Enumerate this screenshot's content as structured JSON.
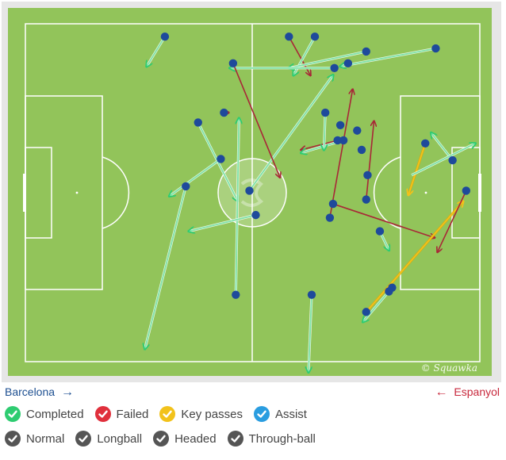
{
  "teams": {
    "home": {
      "name": "Barcelona",
      "arrow": "→",
      "color": "#1d4f91"
    },
    "away": {
      "name": "Espanyol",
      "arrow": "←",
      "color": "#c8283c"
    }
  },
  "watermark": "© Squawka",
  "colors": {
    "pitch": "#92c45a",
    "lines": "#ffffff",
    "completed": "#2ecc71",
    "failed": "#e0303c",
    "key": "#f2c21b",
    "assist": "#2a9de0",
    "type": "#555555",
    "player_dot": "#1e4a9b"
  },
  "legend": {
    "outcomes": [
      {
        "label": "Completed",
        "color": "#2ecc71",
        "icon": "check-icon"
      },
      {
        "label": "Failed",
        "color": "#e0303c",
        "icon": "check-icon"
      },
      {
        "label": "Key passes",
        "color": "#f2c21b",
        "icon": "check-icon"
      },
      {
        "label": "Assist",
        "color": "#2a9de0",
        "icon": "check-icon"
      }
    ],
    "types": [
      {
        "label": "Normal",
        "icon": "check-icon"
      },
      {
        "label": "Longball",
        "icon": "check-icon"
      },
      {
        "label": "Headed",
        "icon": "check-icon"
      },
      {
        "label": "Through-ball",
        "icon": "check-icon"
      }
    ]
  },
  "chart_data": {
    "type": "scatter",
    "x_range": [
      0,
      100
    ],
    "y_range": [
      0,
      100
    ],
    "direction": "left-to-right",
    "passes": [
      {
        "from": [
          58.0,
          3.8
        ],
        "to": [
          62.7,
          15.2
        ],
        "outcome": "failed"
      },
      {
        "from": [
          49.3,
          49.4
        ],
        "to": [
          67.7,
          15.2
        ],
        "outcome": "completed"
      },
      {
        "from": [
          63.7,
          3.8
        ],
        "to": [
          59.0,
          15.2
        ],
        "outcome": "completed"
      },
      {
        "from": [
          90.3,
          7.3
        ],
        "to": [
          69.3,
          12.6
        ],
        "outcome": "completed"
      },
      {
        "from": [
          75.0,
          8.2
        ],
        "to": [
          58.0,
          13.1
        ],
        "outcome": "completed"
      },
      {
        "from": [
          68.0,
          13.1
        ],
        "to": [
          45.0,
          13.1
        ],
        "outcome": "completed"
      },
      {
        "from": [
          45.7,
          11.7
        ],
        "to": [
          56.0,
          45.4
        ],
        "outcome": "failed"
      },
      {
        "from": [
          30.7,
          3.8
        ],
        "to": [
          26.7,
          12.6
        ],
        "outcome": "completed"
      },
      {
        "from": [
          43.7,
          26.3
        ],
        "to": [
          44.7,
          26.3
        ],
        "outcome": "failed"
      },
      {
        "from": [
          38.0,
          29.2
        ],
        "to": [
          46.7,
          52.4
        ],
        "outcome": "completed"
      },
      {
        "from": [
          46.3,
          80.2
        ],
        "to": [
          47.0,
          28.0
        ],
        "outcome": "completed"
      },
      {
        "from": [
          50.7,
          56.6
        ],
        "to": [
          36.0,
          61.4
        ],
        "outcome": "completed"
      },
      {
        "from": [
          35.3,
          48.1
        ],
        "to": [
          26.3,
          96.2
        ],
        "outcome": "completed"
      },
      {
        "from": [
          43.0,
          40.0
        ],
        "to": [
          31.7,
          51.0
        ],
        "outcome": "completed"
      },
      {
        "from": [
          67.7,
          53.3
        ],
        "to": [
          90.0,
          63.3
        ],
        "outcome": "failed"
      },
      {
        "from": [
          67.0,
          57.4
        ],
        "to": [
          72.0,
          19.5
        ],
        "outcome": "failed"
      },
      {
        "from": [
          75.0,
          52.0
        ],
        "to": [
          76.7,
          28.9
        ],
        "outcome": "failed"
      },
      {
        "from": [
          68.7,
          34.5
        ],
        "to": [
          60.7,
          37.3
        ],
        "outcome": "failed"
      },
      {
        "from": [
          70.0,
          34.5
        ],
        "to": [
          60.7,
          38.2
        ],
        "outcome": "completed"
      },
      {
        "from": [
          66.0,
          26.3
        ],
        "to": [
          65.7,
          37.3
        ],
        "outcome": "completed"
      },
      {
        "from": [
          63.0,
          80.2
        ],
        "to": [
          62.3,
          103.1
        ],
        "outcome": "completed"
      },
      {
        "from": [
          78.0,
          61.4
        ],
        "to": [
          80.0,
          67.0
        ],
        "outcome": "completed"
      },
      {
        "from": [
          75.0,
          85.3
        ],
        "to": [
          96.3,
          52.6
        ],
        "outcome": "key"
      },
      {
        "from": [
          80.0,
          79.2
        ],
        "to": [
          74.3,
          88.2
        ],
        "outcome": "completed"
      },
      {
        "from": [
          97.0,
          49.4
        ],
        "to": [
          90.7,
          67.5
        ],
        "outcome": "failed"
      },
      {
        "from": [
          88.0,
          35.4
        ],
        "to": [
          84.3,
          50.6
        ],
        "outcome": "key"
      },
      {
        "from": [
          94.0,
          40.4
        ],
        "to": [
          89.3,
          32.3
        ],
        "outcome": "completed"
      },
      {
        "from": [
          85.0,
          44.8
        ],
        "to": [
          99.0,
          35.4
        ],
        "outcome": "completed"
      }
    ],
    "players": [
      [
        58.0,
        3.8
      ],
      [
        63.7,
        3.8
      ],
      [
        68.0,
        13.1
      ],
      [
        71.0,
        11.7
      ],
      [
        75.0,
        8.2
      ],
      [
        90.3,
        7.3
      ],
      [
        45.7,
        11.7
      ],
      [
        30.7,
        3.8
      ],
      [
        43.7,
        26.3
      ],
      [
        38.0,
        29.2
      ],
      [
        43.0,
        40.0
      ],
      [
        35.3,
        48.1
      ],
      [
        49.3,
        49.4
      ],
      [
        50.7,
        56.6
      ],
      [
        66.0,
        26.3
      ],
      [
        68.7,
        34.5
      ],
      [
        69.3,
        30.0
      ],
      [
        70.0,
        34.5
      ],
      [
        73.0,
        31.6
      ],
      [
        74.0,
        37.3
      ],
      [
        75.3,
        44.8
      ],
      [
        67.7,
        53.3
      ],
      [
        67.0,
        57.4
      ],
      [
        75.0,
        52.0
      ],
      [
        78.0,
        61.4
      ],
      [
        88.0,
        35.4
      ],
      [
        94.0,
        40.4
      ],
      [
        97.0,
        49.4
      ],
      [
        75.0,
        85.3
      ],
      [
        80.0,
        79.2
      ],
      [
        80.7,
        78.1
      ],
      [
        63.0,
        80.2
      ],
      [
        46.3,
        80.2
      ]
    ]
  }
}
